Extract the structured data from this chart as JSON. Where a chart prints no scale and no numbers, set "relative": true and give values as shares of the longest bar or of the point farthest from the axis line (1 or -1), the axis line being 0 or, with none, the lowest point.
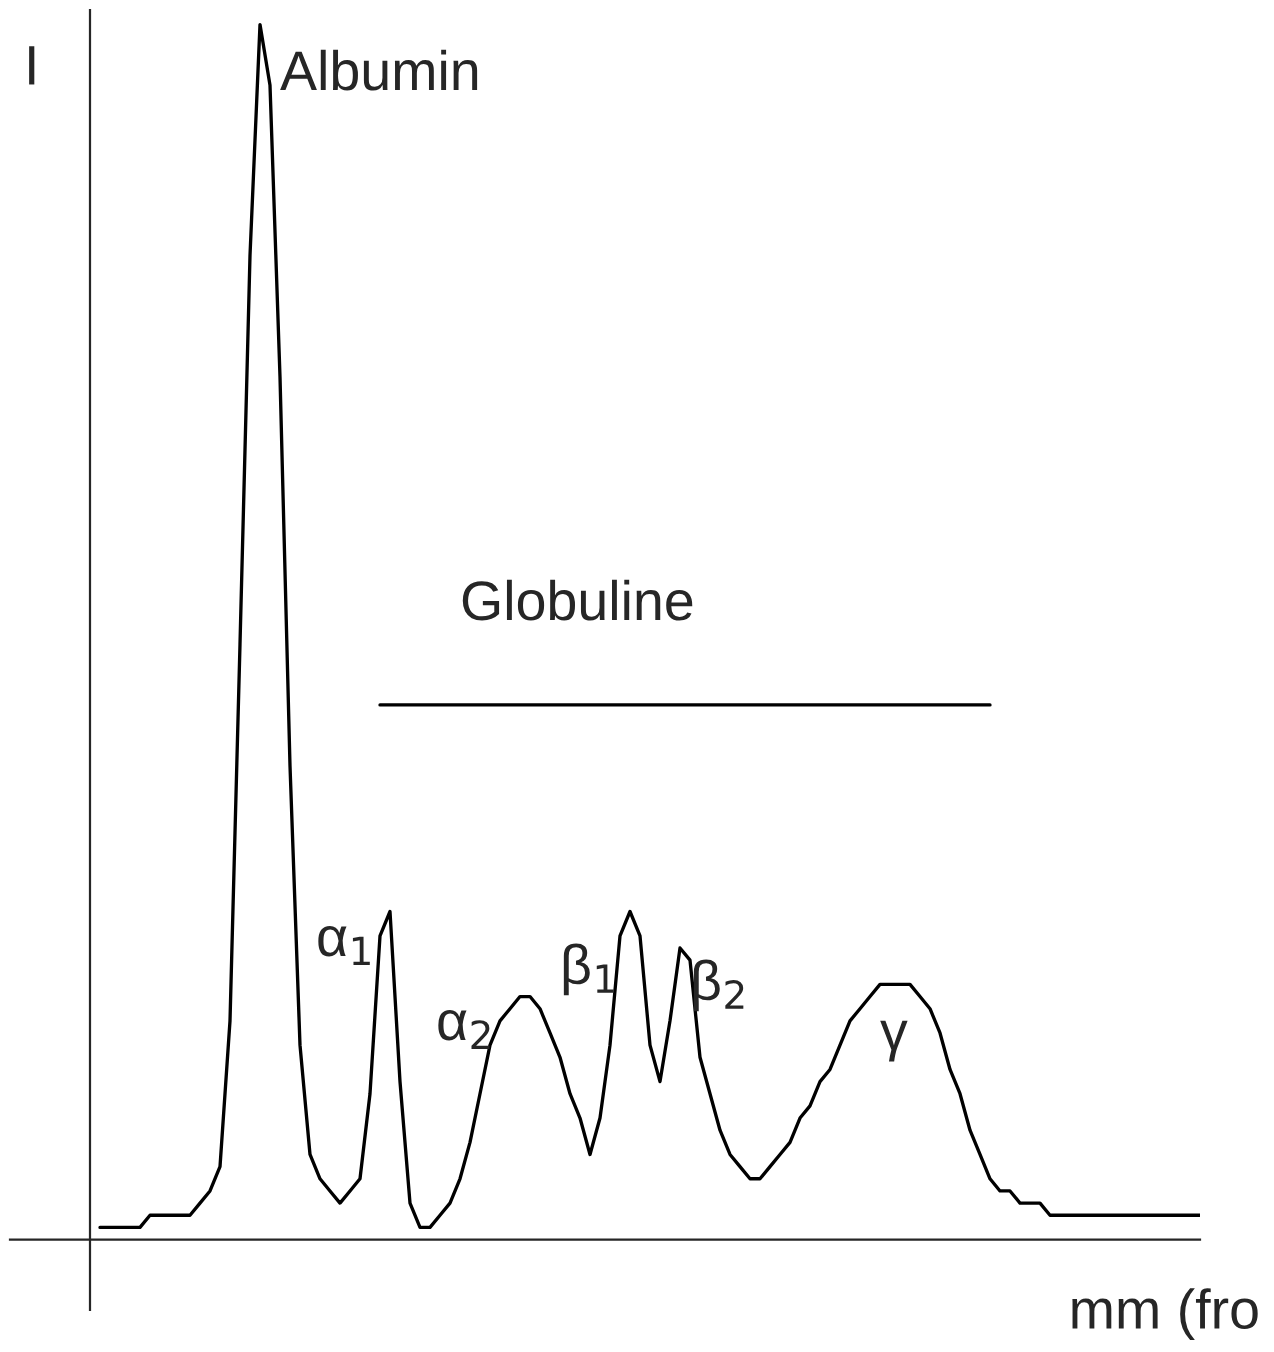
{
  "chart_data": {
    "type": "line",
    "relative": true,
    "ylabel": "I",
    "xlabel": "mm (fro",
    "categories": [
      null,
      null,
      null,
      null,
      null,
      null,
      null,
      null,
      null,
      null,
      null,
      null,
      null,
      null,
      null,
      null,
      null,
      null,
      null,
      null,
      null,
      null,
      null,
      null,
      null,
      null,
      null,
      null,
      null,
      null,
      null,
      null,
      null,
      null,
      null,
      null,
      null,
      null,
      null,
      null,
      null,
      null,
      null,
      null,
      null,
      null,
      null,
      null,
      null,
      null,
      null,
      null,
      null,
      null,
      null,
      null,
      null,
      null,
      null,
      null,
      null,
      null,
      null,
      null,
      null,
      null,
      null,
      null,
      null,
      null,
      null,
      null,
      null,
      null,
      null,
      null,
      null,
      null,
      null,
      null,
      null,
      null,
      null,
      null,
      null,
      null,
      null,
      null,
      null,
      null,
      null,
      null,
      null,
      null,
      null,
      null,
      null,
      null,
      null,
      null,
      null,
      null,
      null,
      null,
      null,
      null,
      null,
      null,
      null,
      null,
      null
    ],
    "series": [
      {
        "color": "#000000",
        "values": [
          0.01,
          0.01,
          0.01,
          0.01,
          0.01,
          0.02,
          0.02,
          0.02,
          0.02,
          0.02,
          0.03,
          0.04,
          0.06,
          0.18,
          0.49,
          0.81,
          1,
          0.95,
          0.71,
          0.39,
          0.16,
          0.07,
          0.05,
          0.04,
          0.03,
          0.04,
          0.05,
          0.12,
          0.25,
          0.27,
          0.13,
          0.03,
          0.01,
          0.01,
          0.02,
          0.03,
          0.05,
          0.08,
          0.12,
          0.16,
          0.18,
          0.19,
          0.2,
          0.2,
          0.19,
          0.17,
          0.15,
          0.12,
          0.1,
          0.07,
          0.1,
          0.16,
          0.25,
          0.27,
          0.25,
          0.16,
          0.13,
          0.18,
          0.24,
          0.23,
          0.15,
          0.12,
          0.09,
          0.07,
          0.06,
          0.05,
          0.05,
          0.06,
          0.07,
          0.08,
          0.1,
          0.11,
          0.13,
          0.14,
          0.16,
          0.18,
          0.19,
          0.2,
          0.21,
          0.21,
          0.21,
          0.21,
          0.2,
          0.19,
          0.17,
          0.14,
          0.12,
          0.09,
          0.07,
          0.05,
          0.04,
          0.04,
          0.03,
          0.03,
          0.03,
          0.02,
          0.02,
          0.02,
          0.02,
          0.02,
          0.02,
          0.02,
          0.02,
          0.02,
          0.02,
          0.02,
          0.02,
          0.02,
          0.02,
          0.02,
          0.02
        ]
      },
      {
        "color": "#000000",
        "values": [
          null,
          null,
          null,
          null,
          null,
          null,
          null,
          null,
          null,
          null,
          null,
          null,
          null,
          null,
          null,
          null,
          null,
          null,
          null,
          null,
          null,
          null,
          null,
          null,
          null,
          null,
          null,
          null,
          0.44,
          0.44,
          0.44,
          0.44,
          0.44,
          0.44,
          0.44,
          0.44,
          0.44,
          0.44,
          0.44,
          0.44,
          0.44,
          0.44,
          0.44,
          0.44,
          0.44,
          0.44,
          0.44,
          0.44,
          0.44,
          0.44,
          0.44,
          0.44,
          0.44,
          0.44,
          0.44,
          0.44,
          0.44,
          0.44,
          0.44,
          0.44,
          0.44,
          0.44,
          0.44,
          0.44,
          0.44,
          0.44,
          0.44,
          0.44,
          0.44,
          0.44,
          0.44,
          0.44,
          0.44,
          0.44,
          0.44,
          0.44,
          0.44,
          0.44,
          0.44,
          0.44,
          0.44,
          0.44,
          0.44,
          0.44,
          0.44,
          0.44,
          0.44,
          0.44,
          0.44,
          0.44,
          null,
          null,
          null,
          null,
          null,
          null,
          null,
          null,
          null,
          null,
          null,
          null,
          null,
          null,
          null,
          null,
          null,
          null,
          null,
          null,
          null
        ]
      }
    ],
    "annotations": [
      "Albumin",
      "Globuline",
      "α$_{1}$",
      "α$_{2}$",
      "β$_{1}$",
      "β$_{2}$",
      "γ"
    ],
    "grid": false,
    "legend": false,
    "marker": "none",
    "line_style": "solid"
  }
}
